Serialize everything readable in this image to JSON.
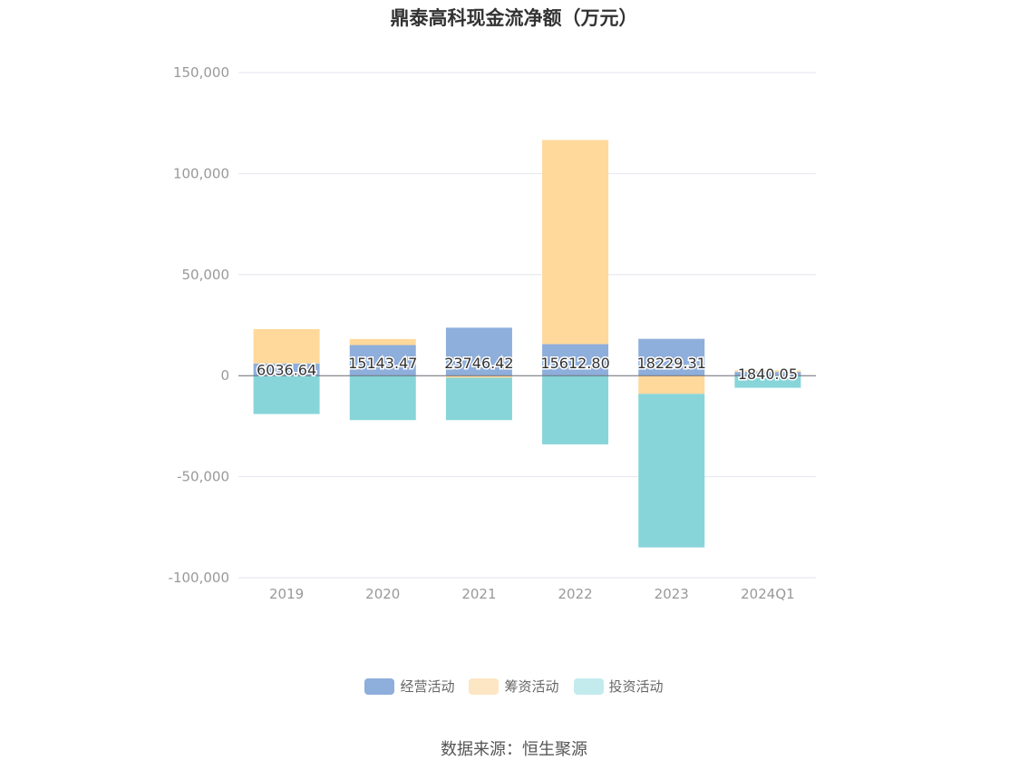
{
  "chart_data": {
    "type": "bar",
    "stacked": true,
    "title": "鼎泰高科现金流净额（万元）",
    "categories": [
      "2019",
      "2020",
      "2021",
      "2022",
      "2023",
      "2024Q1"
    ],
    "ylim": [
      -100000,
      150000
    ],
    "yticks": [
      150000,
      100000,
      50000,
      0,
      -50000,
      -100000
    ],
    "ytick_labels": [
      "150,000",
      "100,000",
      "50,000",
      "0",
      "-50,000",
      "-100,000"
    ],
    "grid": true,
    "legend_position": "bottom",
    "series": [
      {
        "name": "经营活动",
        "color": "#8eaedb",
        "values": [
          6036.64,
          15143.47,
          23746.42,
          15612.8,
          18229.31,
          1840.05
        ],
        "labels": [
          "6036.64",
          "15143.47",
          "23746.42",
          "15612.80",
          "18229.31",
          "1840.05"
        ]
      },
      {
        "name": "筹资活动",
        "color": "#ffd89b",
        "values": [
          17000,
          3000,
          -1000,
          101000,
          -9000,
          800
        ],
        "legend_color": "#fde6c4"
      },
      {
        "name": "投资活动",
        "color": "#87d5d9",
        "values": [
          -19000,
          -22000,
          -21000,
          -34000,
          -76000,
          -6000
        ],
        "legend_color": "#c3ebee"
      }
    ],
    "source": "数据来源：恒生聚源"
  }
}
